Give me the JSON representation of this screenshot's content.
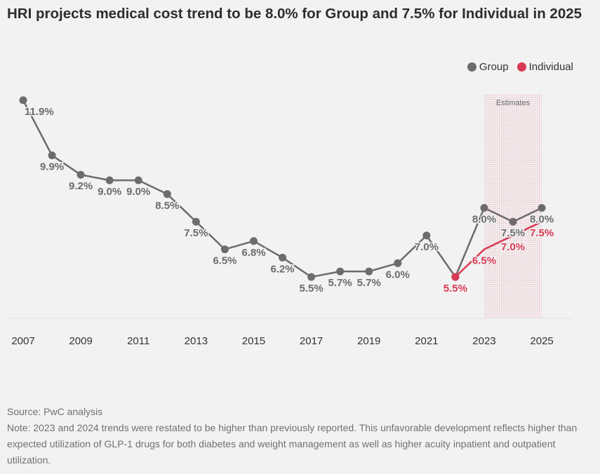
{
  "title": "HRI projects medical cost trend to be 8.0% for Group and 7.5% for Individual in 2025",
  "chart_data": {
    "type": "line",
    "title": "HRI projects medical cost trend to be 8.0% for Group and 7.5% for Individual in 2025",
    "x": [
      2007,
      2008,
      2009,
      2010,
      2011,
      2012,
      2013,
      2014,
      2015,
      2016,
      2017,
      2018,
      2019,
      2020,
      2021,
      2022,
      2023,
      2024,
      2025
    ],
    "x_tick_labels": [
      "2007",
      "2009",
      "2011",
      "2013",
      "2015",
      "2017",
      "2019",
      "2021",
      "2023",
      "2025"
    ],
    "series": [
      {
        "name": "Group",
        "color": "#6d6b6b",
        "x": [
          2007,
          2008,
          2009,
          2010,
          2011,
          2012,
          2013,
          2014,
          2015,
          2016,
          2017,
          2018,
          2019,
          2020,
          2021,
          2022,
          2023,
          2024,
          2025
        ],
        "values": [
          11.9,
          9.9,
          9.2,
          9.0,
          9.0,
          8.5,
          7.5,
          6.5,
          6.8,
          6.2,
          5.5,
          5.7,
          5.7,
          6.0,
          7.0,
          5.5,
          8.0,
          7.5,
          8.0
        ],
        "labeled": [
          true,
          true,
          true,
          true,
          true,
          true,
          true,
          true,
          true,
          true,
          true,
          true,
          true,
          true,
          true,
          false,
          true,
          true,
          true
        ]
      },
      {
        "name": "Individual",
        "color": "#d93954",
        "x": [
          2022,
          2023,
          2024,
          2025
        ],
        "values": [
          5.5,
          6.5,
          7.0,
          7.5
        ],
        "labeled": [
          true,
          true,
          true,
          true
        ]
      }
    ],
    "unit": "%",
    "annotation": {
      "label": "Estimates",
      "x_range": [
        2023,
        2025
      ]
    },
    "ylim": [
      4.0,
      12.2
    ],
    "grid": false,
    "legend_position": "top-right"
  },
  "legend": {
    "group": "Group",
    "individual": "Individual"
  },
  "footer": {
    "source": "Source: PwC analysis",
    "note": "Note: 2023 and 2024 trends were restated to be higher than previously reported. This unfavorable development reflects higher than expected utilization of GLP-1 drugs for both diabetes and weight management as well as higher acuity inpatient and outpatient utilization."
  }
}
